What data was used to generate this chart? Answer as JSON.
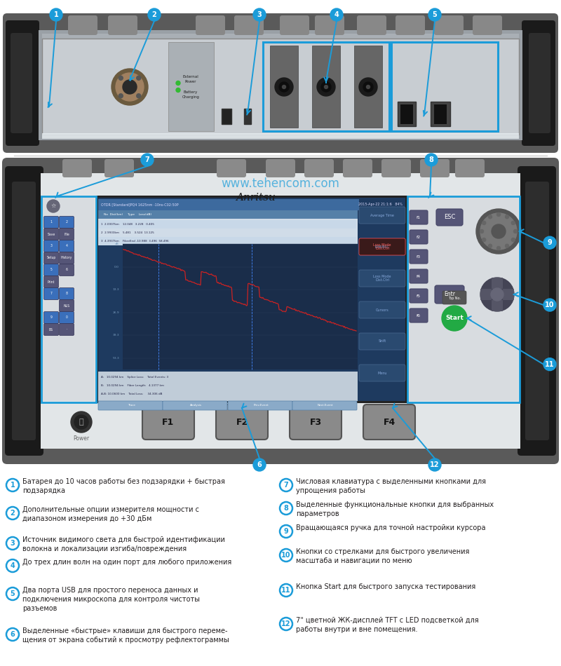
{
  "bg_color": "#ffffff",
  "accent_color": "#1b9cd9",
  "text_color": "#231f20",
  "watermark": "www.tehencom.com",
  "items_left": [
    {
      "num": "1",
      "text": "Батарея до 10 часов работы без подзарядки + быстрая\nподзарядка"
    },
    {
      "num": "2",
      "text": "Дополнительные опции измерителя мощности с\nдиапазоном измерения до +30 дБм"
    },
    {
      "num": "3",
      "text": "Источник видимого света для быстрой идентификации\nволокна и локализации изгиба/повреждения"
    },
    {
      "num": "4",
      "text": "До трех длин волн на один порт для любого приложения"
    },
    {
      "num": "5",
      "text": "Два порта USB для простого переноса данных и\nподключения микроскопа для контроля чистоты\nразъемов"
    },
    {
      "num": "6",
      "text": "Выделенные «быстрые» клавиши для быстрого переме-\nщения от экрана событий к просмотру рефлектограммы"
    }
  ],
  "items_right": [
    {
      "num": "7",
      "text": "Числовая клавиатура с выделенными кнопками для\nупрощения работы"
    },
    {
      "num": "8",
      "text": "Выделенные функциональные кнопки для выбранных\nпараметров"
    },
    {
      "num": "9",
      "text": "Вращающаяся ручка для точной настройки курсора"
    },
    {
      "num": "10",
      "text": "Кнопки со стрелками для быстрого увеличения\nмасштаба и навигации по меню"
    },
    {
      "num": "11",
      "text": "Кнопка Start для быстрого запуска тестирования"
    },
    {
      "num": "12",
      "text": "7\" цветной ЖК-дисплей TFT с LED подсветкой для\nработы внутри и вне помещения."
    }
  ]
}
